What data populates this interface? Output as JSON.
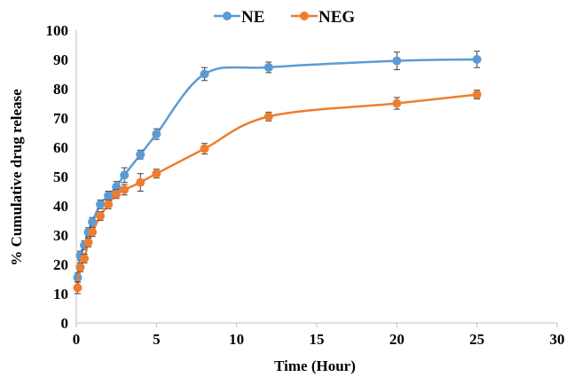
{
  "chart_data": {
    "type": "line",
    "xlabel": "Time (Hour)",
    "ylabel": "% Cumulative drug release",
    "xlim": [
      0,
      30
    ],
    "ylim": [
      0,
      100
    ],
    "xticks": [
      0,
      5,
      10,
      15,
      20,
      25,
      30
    ],
    "yticks": [
      0,
      10,
      20,
      30,
      40,
      50,
      60,
      70,
      80,
      90,
      100
    ],
    "grid": false,
    "legend_position": "top-center",
    "series": [
      {
        "name": "NE",
        "color": "#5B9BD5",
        "x": [
          0.083,
          0.25,
          0.5,
          0.75,
          1,
          1.5,
          2,
          2.5,
          3,
          4,
          5,
          8,
          12,
          20,
          25
        ],
        "y": [
          15.5,
          23,
          26.5,
          31,
          34.5,
          40.5,
          43.5,
          46.5,
          50.5,
          57.5,
          64.5,
          85,
          87.3,
          89.5,
          90
        ],
        "error": [
          1.5,
          1.5,
          1.5,
          1.5,
          1.5,
          1.5,
          1.5,
          1.8,
          2.5,
          1.5,
          1.8,
          2.2,
          1.8,
          3,
          2.8
        ]
      },
      {
        "name": "NEG",
        "color": "#ED7D31",
        "x": [
          0.083,
          0.25,
          0.5,
          0.75,
          1,
          1.5,
          2,
          2.5,
          3,
          4,
          5,
          8,
          12,
          20,
          25
        ],
        "y": [
          12,
          19,
          22,
          27.5,
          31,
          36.5,
          40.5,
          44,
          45.5,
          48,
          51,
          59.5,
          70.5,
          75,
          78
        ],
        "error": [
          2,
          1.5,
          1.5,
          1.5,
          1.5,
          1.5,
          1.5,
          1.5,
          1.8,
          3,
          1.5,
          1.8,
          1.5,
          2,
          1.5
        ]
      }
    ]
  }
}
